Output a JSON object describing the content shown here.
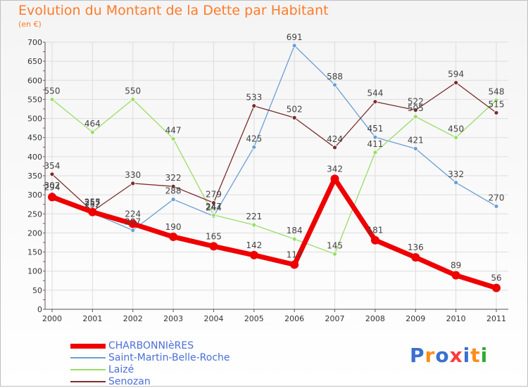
{
  "chart_data": {
    "type": "line",
    "title": "Evolution du Montant de la Dette par Habitant",
    "subtitle": "(en €)",
    "xlabel": "",
    "ylabel": "",
    "categories": [
      "2000",
      "2001",
      "2002",
      "2003",
      "2004",
      "2005",
      "2006",
      "2007",
      "2008",
      "2009",
      "2010",
      "2011"
    ],
    "ylim": [
      0,
      700
    ],
    "yticks": [
      0,
      50,
      100,
      150,
      200,
      250,
      300,
      350,
      400,
      450,
      500,
      550,
      600,
      650,
      700
    ],
    "grid": true,
    "legend_position": "bottom-left",
    "series": [
      {
        "name": "CHARBONNIèRES",
        "color": "#ee0000",
        "values": [
          294,
          255,
          224,
          190,
          165,
          142,
          117,
          342,
          181,
          136,
          89,
          56
        ]
      },
      {
        "name": "Saint-Martin-Belle-Roche",
        "color": "#6b9fd4",
        "values": [
          302,
          252,
          207,
          288,
          244,
          425,
          691,
          588,
          451,
          421,
          332,
          270
        ]
      },
      {
        "name": "Laizé",
        "color": "#99dd66",
        "values": [
          550,
          464,
          550,
          447,
          247,
          221,
          184,
          145,
          411,
          505,
          450,
          548
        ]
      },
      {
        "name": "Senozan",
        "color": "#7a2d2d",
        "values": [
          354,
          257,
          330,
          322,
          279,
          533,
          502,
          424,
          544,
          522,
          594,
          515
        ]
      }
    ]
  },
  "logo": {
    "text": "Proxiti",
    "letters": [
      "P",
      "r",
      "o",
      "x",
      "i",
      "t",
      "i"
    ],
    "colors": [
      "#3b6fd0",
      "#ff8c1a",
      "#3b6fd0",
      "#ff3b3b",
      "#3b6fd0",
      "#ff8c1a",
      "#33aa33"
    ]
  }
}
